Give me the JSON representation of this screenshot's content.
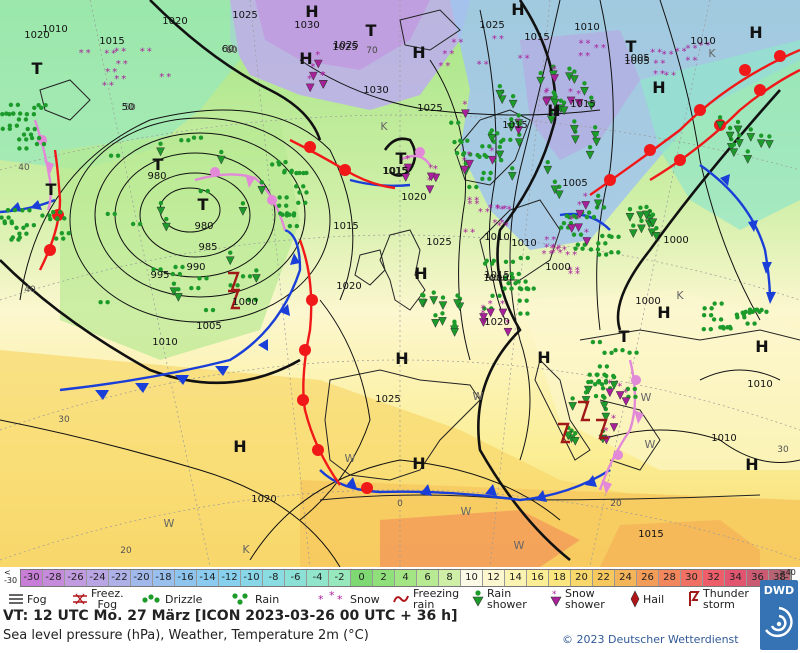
{
  "map": {
    "isobars": [
      "1020",
      "1025",
      "1030",
      "1015",
      "1010",
      "1015",
      "1025",
      "1010",
      "1005",
      "1020",
      "60",
      "50",
      "1010",
      "1030",
      "1025",
      "1025",
      "1015",
      "1005",
      "1000",
      "1015",
      "980",
      "985",
      "990",
      "995",
      "980",
      "1000",
      "1005",
      "1010",
      "1020",
      "1025",
      "1000",
      "1015",
      "1025",
      "1020",
      "1015",
      "1010",
      "1020",
      "1010",
      "1000",
      "1005",
      "1000",
      "1010",
      "1010",
      "1015",
      "1015",
      "1025",
      "1020",
      "1015"
    ],
    "lat_labels": [
      "70",
      "60",
      "50",
      "40",
      "30",
      "20",
      "0",
      "20",
      "30",
      "40",
      "60",
      "70"
    ],
    "pressure_centres": [
      {
        "kind": "H",
        "label": "H"
      },
      {
        "kind": "H",
        "label": "H"
      },
      {
        "kind": "H",
        "label": "H"
      },
      {
        "kind": "H",
        "label": "H"
      },
      {
        "kind": "H",
        "label": "H"
      },
      {
        "kind": "H",
        "label": "H"
      },
      {
        "kind": "H",
        "label": "H"
      },
      {
        "kind": "H",
        "label": "H"
      },
      {
        "kind": "H",
        "label": "H"
      },
      {
        "kind": "H",
        "label": "H"
      },
      {
        "kind": "H",
        "label": "H"
      },
      {
        "kind": "H",
        "label": "H"
      },
      {
        "kind": "H",
        "label": "H"
      },
      {
        "kind": "H",
        "label": "H"
      },
      {
        "kind": "H",
        "label": "H"
      },
      {
        "kind": "T",
        "label": "T"
      },
      {
        "kind": "T",
        "label": "T"
      },
      {
        "kind": "T",
        "label": "T"
      },
      {
        "kind": "T",
        "label": "T"
      },
      {
        "kind": "T",
        "label": "T"
      },
      {
        "kind": "T",
        "label": "T"
      },
      {
        "kind": "T",
        "label": "T"
      },
      {
        "kind": "T",
        "label": "T"
      }
    ],
    "other_labels": [
      "K",
      "K",
      "K",
      "W",
      "W",
      "W",
      "W",
      "W",
      "K",
      "W",
      "W"
    ]
  },
  "legend": {
    "low_end": "<\n-30",
    "high_end": "≥40\n°C",
    "scale": [
      {
        "label": "-30",
        "color": "#c87dd7"
      },
      {
        "label": "-28",
        "color": "#c68cdb"
      },
      {
        "label": "-26",
        "color": "#c29ae0"
      },
      {
        "label": "-24",
        "color": "#b9a5e3"
      },
      {
        "label": "-22",
        "color": "#aeb0e8"
      },
      {
        "label": "-20",
        "color": "#a1b8eb"
      },
      {
        "label": "-18",
        "color": "#98bfee"
      },
      {
        "label": "-16",
        "color": "#8dc5ef"
      },
      {
        "label": "-14",
        "color": "#8acbef"
      },
      {
        "label": "-12",
        "color": "#88d1ee"
      },
      {
        "label": "-10",
        "color": "#87d7e9"
      },
      {
        "label": "-8",
        "color": "#89dce1"
      },
      {
        "label": "-6",
        "color": "#8ce1d7"
      },
      {
        "label": "-4",
        "color": "#91e5cb"
      },
      {
        "label": "-2",
        "color": "#97e8bc"
      },
      {
        "label": "0",
        "color": "#7ed973"
      },
      {
        "label": "2",
        "color": "#8fdf7b"
      },
      {
        "label": "4",
        "color": "#a3e585"
      },
      {
        "label": "6",
        "color": "#b8ea93"
      },
      {
        "label": "8",
        "color": "#cfefa7"
      },
      {
        "label": "10",
        "color": "#fbfae6"
      },
      {
        "label": "12",
        "color": "#fcf7cf"
      },
      {
        "label": "14",
        "color": "#fbf3b2"
      },
      {
        "label": "16",
        "color": "#fbee95"
      },
      {
        "label": "18",
        "color": "#fae57e"
      },
      {
        "label": "20",
        "color": "#f8d76b"
      },
      {
        "label": "22",
        "color": "#f6c85e"
      },
      {
        "label": "24",
        "color": "#f4b459"
      },
      {
        "label": "26",
        "color": "#f39d59"
      },
      {
        "label": "28",
        "color": "#f2865d"
      },
      {
        "label": "30",
        "color": "#f07063"
      },
      {
        "label": "32",
        "color": "#ee5e6a"
      },
      {
        "label": "34",
        "color": "#e25570"
      },
      {
        "label": "36",
        "color": "#cb5a73"
      },
      {
        "label": "38",
        "color": "#b66474"
      }
    ],
    "weather": [
      {
        "icon": "fog-icon",
        "label": "Fog"
      },
      {
        "icon": "freezing-fog-icon",
        "label": "Freez.\nFog"
      },
      {
        "icon": "drizzle-icon",
        "label": "Drizzle"
      },
      {
        "icon": "rain-icon",
        "label": "Rain"
      },
      {
        "icon": "snow-icon",
        "label": "Snow"
      },
      {
        "icon": "freezing-rain-icon",
        "label": "Freezing\nrain"
      },
      {
        "icon": "rain-shower-icon",
        "label": "Rain\nshower"
      },
      {
        "icon": "snow-shower-icon",
        "label": "Snow\nshower"
      },
      {
        "icon": "hail-icon",
        "label": "Hail"
      },
      {
        "icon": "thunderstorm-icon",
        "label": "Thunder\nstorm"
      }
    ],
    "valid_time": "VT: 12 UTC Mo.  27 März [ICON 2023-03-26  00 UTC + 36 h]",
    "subtitle": "Sea level pressure (hPa), Weather, Temperature 2m (°C)",
    "copyright": "© 2023 Deutscher Wetterdienst",
    "logo_text": "DWD"
  },
  "colors": {
    "cold_front": "#1a3fd8",
    "warm_front": "#f01818",
    "occlusion": "#e28ad8",
    "rain_symbol": "#1c9a2a",
    "snow_symbol": "#a8209a",
    "thunder_symbol": "#a01818",
    "isobar": "#111111",
    "dwd_blue": "#3573b5"
  }
}
